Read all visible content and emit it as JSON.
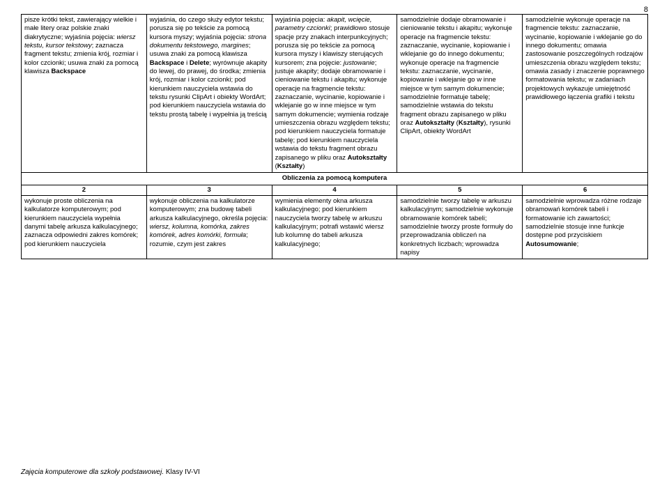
{
  "page_number": "8",
  "footer_italic": "Zajęcia komputerowe dla szkoły podstawowej.",
  "footer_rest": " Klasy IV-VI",
  "section_header": "Obliczenia za pomocą komputera",
  "row1": {
    "c1": "pisze krótki tekst, zawierający wielkie i małe litery oraz polskie znaki diakrytyczne; wyjaśnia pojęcia: <i>wiersz tekstu, kursor tekstowy</i>; zaznacza fragment tekstu; zmienia krój, rozmiar i kolor czcionki; usuwa znaki za pomocą klawisza <b>Backspace</b>",
    "c2": "wyjaśnia, do czego służy edytor tekstu; porusza się po tekście za pomocą kursora myszy; wyjaśnia pojęcia: <i>strona dokumentu tekstowego, margines</i>; usuwa znaki za pomocą klawisza <b>Backspace</b> i <b>Delete</b>; wyrównuje akapity do lewej, do prawej, do środka; zmienia krój, rozmiar i kolor czcionki; pod kierunkiem nauczyciela wstawia do tekstu rysunki ClipArt i obiekty WordArt; pod kierunkiem nauczyciela wstawia do tekstu prostą tabelę i wypełnia ją treścią",
    "c3": "wyjaśnia pojęcia: <i>akapit, wcięcie, parametry czcionki</i>; prawidłowo stosuje spacje przy znakach interpunkcyjnych; porusza się po tekście za pomocą kursora myszy i klawiszy sterujących kursorem; zna pojęcie: <i>justowanie</i>; justuje akapity; dodaje obramowanie i cieniowanie tekstu i akapitu; wykonuje operacje na fragmencie tekstu: zaznaczanie, wycinanie, kopiowanie i wklejanie go w inne miejsce w tym samym dokumencie; wymienia rodzaje umieszczenia obrazu względem tekstu; pod kierunkiem nauczyciela formatuje tabelę; pod kierunkiem nauczyciela wstawia do tekstu fragment obrazu zapisanego w pliku oraz <b>Autokształty</b> (<b>Kształty</b>)",
    "c4": "samodzielnie dodaje obramowanie i cieniowanie tekstu i akapitu; wykonuje operacje na fragmencie tekstu: zaznaczanie, wycinanie, kopiowanie i wklejanie go do innego dokumentu; wykonuje operacje na fragmencie tekstu: zaznaczanie, wycinanie, kopiowanie i wklejanie go w inne miejsce w tym samym dokumencie; samodzielnie formatuje tabelę; samodzielnie wstawia do tekstu fragment obrazu zapisanego w pliku oraz <b>Autokształty</b> (<b>Kształty</b>), rysunki ClipArt, obiekty WordArt",
    "c5": "samodzielnie wykonuje operacje na fragmencie tekstu: zaznaczanie, wycinanie, kopiowanie i wklejanie go do innego dokumentu; omawia zastosowanie poszczególnych rodzajów umieszczenia obrazu względem tekstu; omawia zasady i znaczenie poprawnego formatowania tekstu; w zadaniach projektowych wykazuje umiejętność prawidłowego łączenia grafiki i tekstu"
  },
  "nums": {
    "n1": "2",
    "n2": "3",
    "n3": "4",
    "n4": "5",
    "n5": "6"
  },
  "row2": {
    "c1": "wykonuje proste obliczenia na kalkulatorze komputerowym; pod kierunkiem nauczyciela wypełnia danymi tabelę arkusza kalkulacyjnego; zaznacza odpowiedni zakres komórek; pod kierunkiem nauczyciela",
    "c2": "wykonuje obliczenia na kalkulatorze komputerowym; zna budowę tabeli arkusza kalkulacyjnego, określa pojęcia: <i>wiersz, kolumna, komórka, zakres komórek, adres komórki, formuła</i>; rozumie, czym jest zakres",
    "c3": "wymienia elementy okna arkusza kalkulacyjnego; pod kierunkiem nauczyciela tworzy tabelę w arkuszu kalkulacyjnym; potrafi wstawić  wiersz lub kolumnę do tabeli arkusza kalkulacyjnego;",
    "c4": "samodzielnie tworzy tabelę w arkuszu kalkulacyjnym; samodzielnie wykonuje obramowanie komórek tabeli; samodzielnie tworzy proste formuły do przeprowadzania obliczeń na konkretnych liczbach; wprowadza napisy",
    "c5": "samodzielnie wprowadza różne rodzaje obramowań komórek tabeli i formatowanie ich zawartości; samodzielnie stosuje inne funkcje dostępne pod przyciskiem <b>Autosumowanie</b>;"
  }
}
